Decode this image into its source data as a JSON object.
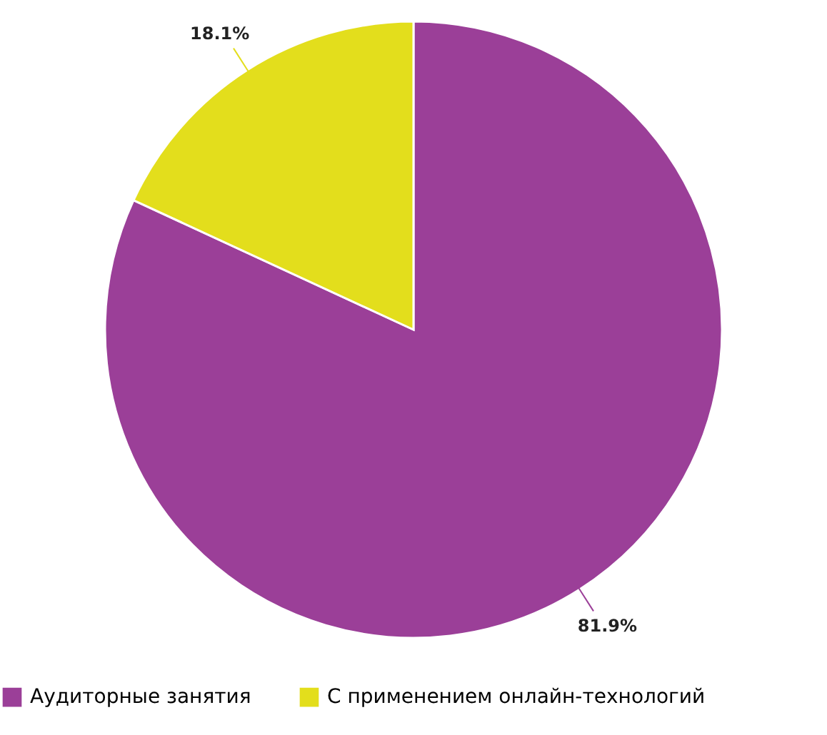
{
  "chart_data": {
    "type": "pie",
    "categories": [
      "Аудиторные занятия",
      "С применением онлайн-технологий"
    ],
    "values": [
      81.9,
      18.1
    ],
    "colors": [
      "#9b3f98",
      "#e3de1c"
    ],
    "value_labels": [
      "81.9%",
      "18.1%"
    ],
    "legend": "bottom"
  }
}
